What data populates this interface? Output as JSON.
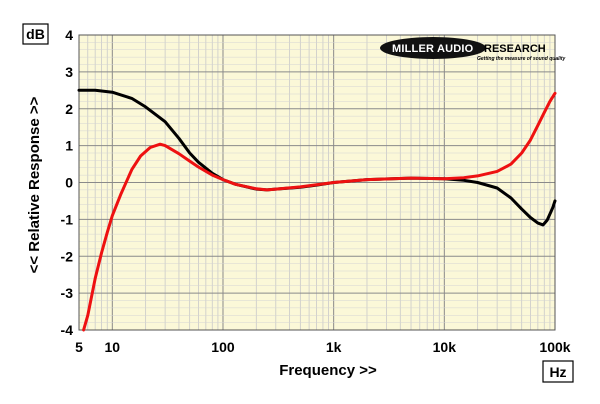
{
  "chart_data": {
    "type": "line",
    "title": "",
    "xlabel": "Frequency >>",
    "ylabel": "<< Relative Response >>",
    "y_unit": "dB",
    "x_unit": "Hz",
    "x_scale": "log",
    "xlim": [
      5,
      100000
    ],
    "ylim": [
      -4,
      4
    ],
    "grid": true,
    "background": "#fbf8d8",
    "x_ticks": [
      {
        "value": 5,
        "label": "5"
      },
      {
        "value": 10,
        "label": "10"
      },
      {
        "value": 100,
        "label": "100"
      },
      {
        "value": 1000,
        "label": "1k"
      },
      {
        "value": 10000,
        "label": "10k"
      },
      {
        "value": 100000,
        "label": "100k"
      }
    ],
    "y_ticks": [
      {
        "value": 4,
        "label": "4"
      },
      {
        "value": 3,
        "label": "3"
      },
      {
        "value": 2,
        "label": "2"
      },
      {
        "value": 1,
        "label": "1"
      },
      {
        "value": 0,
        "label": "0"
      },
      {
        "value": -1,
        "label": "-1"
      },
      {
        "value": -2,
        "label": "-2"
      },
      {
        "value": -3,
        "label": "-3"
      },
      {
        "value": -4,
        "label": "-4"
      }
    ],
    "series": [
      {
        "color": "#000000",
        "points": [
          [
            5,
            2.5
          ],
          [
            7,
            2.5
          ],
          [
            10,
            2.45
          ],
          [
            15,
            2.28
          ],
          [
            20,
            2.05
          ],
          [
            30,
            1.65
          ],
          [
            40,
            1.2
          ],
          [
            50,
            0.8
          ],
          [
            60,
            0.55
          ],
          [
            80,
            0.25
          ],
          [
            100,
            0.08
          ],
          [
            130,
            -0.05
          ],
          [
            200,
            -0.18
          ],
          [
            250,
            -0.2
          ],
          [
            300,
            -0.18
          ],
          [
            500,
            -0.13
          ],
          [
            700,
            -0.07
          ],
          [
            1000,
            0.0
          ],
          [
            2000,
            0.08
          ],
          [
            5000,
            0.12
          ],
          [
            10000,
            0.1
          ],
          [
            15000,
            0.06
          ],
          [
            20000,
            0.0
          ],
          [
            30000,
            -0.15
          ],
          [
            40000,
            -0.42
          ],
          [
            50000,
            -0.72
          ],
          [
            60000,
            -0.95
          ],
          [
            70000,
            -1.1
          ],
          [
            78000,
            -1.15
          ],
          [
            85000,
            -1.02
          ],
          [
            95000,
            -0.7
          ],
          [
            100000,
            -0.5
          ]
        ]
      },
      {
        "color": "#ee1111",
        "points": [
          [
            5.5,
            -4.0
          ],
          [
            6,
            -3.6
          ],
          [
            7,
            -2.6
          ],
          [
            8,
            -1.9
          ],
          [
            9,
            -1.35
          ],
          [
            10,
            -0.9
          ],
          [
            12,
            -0.3
          ],
          [
            15,
            0.35
          ],
          [
            18,
            0.72
          ],
          [
            22,
            0.95
          ],
          [
            27,
            1.04
          ],
          [
            30,
            1.0
          ],
          [
            40,
            0.78
          ],
          [
            50,
            0.58
          ],
          [
            60,
            0.42
          ],
          [
            80,
            0.2
          ],
          [
            100,
            0.08
          ],
          [
            130,
            -0.05
          ],
          [
            200,
            -0.17
          ],
          [
            250,
            -0.2
          ],
          [
            300,
            -0.18
          ],
          [
            500,
            -0.12
          ],
          [
            1000,
            0.0
          ],
          [
            2000,
            0.08
          ],
          [
            5000,
            0.12
          ],
          [
            10000,
            0.1
          ],
          [
            15000,
            0.13
          ],
          [
            20000,
            0.18
          ],
          [
            30000,
            0.3
          ],
          [
            40000,
            0.5
          ],
          [
            50000,
            0.8
          ],
          [
            60000,
            1.15
          ],
          [
            70000,
            1.55
          ],
          [
            80000,
            1.9
          ],
          [
            90000,
            2.2
          ],
          [
            100000,
            2.42
          ]
        ]
      }
    ],
    "logo": {
      "main": "MILLER AUDIO",
      "right": "RESEARCH",
      "tagline": "Getting the measure of sound quality"
    }
  }
}
